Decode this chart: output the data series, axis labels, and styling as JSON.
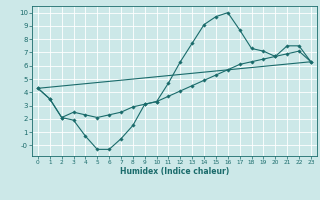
{
  "title": "",
  "xlabel": "Humidex (Indice chaleur)",
  "bg_color": "#cce8e8",
  "grid_color": "#ffffff",
  "line_color": "#1a6b6b",
  "xlim": [
    -0.5,
    23.5
  ],
  "ylim": [
    -0.8,
    10.5
  ],
  "xticks": [
    0,
    1,
    2,
    3,
    4,
    5,
    6,
    7,
    8,
    9,
    10,
    11,
    12,
    13,
    14,
    15,
    16,
    17,
    18,
    19,
    20,
    21,
    22,
    23
  ],
  "yticks": [
    0,
    1,
    2,
    3,
    4,
    5,
    6,
    7,
    8,
    9,
    10
  ],
  "line1_x": [
    0,
    1,
    2,
    3,
    4,
    5,
    6,
    7,
    8,
    9,
    10,
    11,
    12,
    13,
    14,
    15,
    16,
    17,
    18,
    19,
    20,
    21,
    22,
    23
  ],
  "line1_y": [
    4.3,
    3.5,
    2.1,
    1.9,
    0.7,
    -0.3,
    -0.3,
    0.5,
    1.5,
    3.1,
    3.3,
    4.7,
    6.3,
    7.7,
    9.1,
    9.7,
    10.0,
    8.7,
    7.3,
    7.1,
    6.7,
    7.5,
    7.5,
    6.3
  ],
  "line2_x": [
    0,
    1,
    2,
    3,
    4,
    5,
    6,
    7,
    8,
    9,
    10,
    11,
    12,
    13,
    14,
    15,
    16,
    17,
    18,
    19,
    20,
    21,
    22,
    23
  ],
  "line2_y": [
    4.3,
    3.5,
    2.1,
    2.5,
    2.3,
    2.1,
    2.3,
    2.5,
    2.9,
    3.1,
    3.3,
    3.7,
    4.1,
    4.5,
    4.9,
    5.3,
    5.7,
    6.1,
    6.3,
    6.5,
    6.7,
    6.9,
    7.1,
    6.3
  ],
  "line3_x": [
    0,
    23
  ],
  "line3_y": [
    4.3,
    6.3
  ],
  "figsize": [
    3.2,
    2.0
  ],
  "dpi": 100
}
